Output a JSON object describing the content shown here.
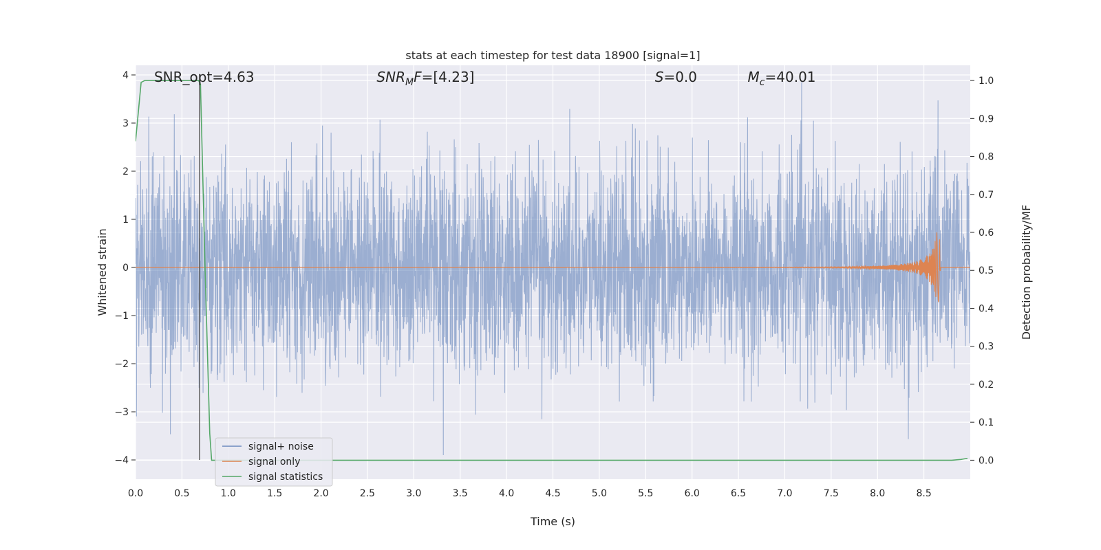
{
  "chart_data": {
    "type": "line",
    "title": "stats at each timestep for test data 18900 [signal=1]",
    "xlabel": "Time (s)",
    "ylabel_left": "Whitened strain",
    "ylabel_right": "Detection probability/MF",
    "xlim": [
      0.0,
      9.0
    ],
    "ylim_left": [
      -4.4,
      4.2
    ],
    "ylim_right": [
      -0.05,
      1.04
    ],
    "x_ticks": [
      "0.0",
      "0.5",
      "1.0",
      "1.5",
      "2.0",
      "2.5",
      "3.0",
      "3.5",
      "4.0",
      "4.5",
      "5.0",
      "5.5",
      "6.0",
      "6.5",
      "7.0",
      "7.5",
      "8.0",
      "8.5"
    ],
    "x_tick_values": [
      0.0,
      0.5,
      1.0,
      1.5,
      2.0,
      2.5,
      3.0,
      3.5,
      4.0,
      4.5,
      5.0,
      5.5,
      6.0,
      6.5,
      7.0,
      7.5,
      8.0,
      8.5
    ],
    "y_ticks_left": [
      "4",
      "3",
      "2",
      "1",
      "0",
      "−1",
      "−2",
      "−3",
      "−4"
    ],
    "y_tick_values_left": [
      4,
      3,
      2,
      1,
      0,
      -1,
      -2,
      -3,
      -4
    ],
    "y_ticks_right": [
      "1.0",
      "0.9",
      "0.8",
      "0.7",
      "0.6",
      "0.5",
      "0.4",
      "0.3",
      "0.2",
      "0.1",
      "0.0"
    ],
    "y_tick_values_right": [
      1.0,
      0.9,
      0.8,
      0.7,
      0.6,
      0.5,
      0.4,
      0.3,
      0.2,
      0.1,
      0.0
    ],
    "grid": true,
    "legend_position": "lower-left",
    "annotations": [
      {
        "text": "SNR_opt=4.63",
        "x": 0.2,
        "y": 4.0
      },
      {
        "text": "SNR",
        "sub": "M",
        "suffix": "F=[4.23]",
        "x": 2.6,
        "y": 4.0,
        "italic": true
      },
      {
        "text": "S",
        "suffix": "=0.0",
        "x": 5.6,
        "y": 4.0,
        "italic": true
      },
      {
        "text": "M",
        "sub": "c",
        "suffix": "=40.01",
        "x": 6.6,
        "y": 4.0,
        "italic": true
      }
    ],
    "vertical_marker_x": 0.69,
    "series": [
      {
        "name": "signal+ noise",
        "color": "#4c72b0",
        "alpha": 0.5,
        "axis": "left",
        "description_values": "white noise, std ~1, range about -4 to 3.9 over 0-9 s"
      },
      {
        "name": "signal only",
        "color": "#dd8452",
        "axis": "left",
        "chirp": {
          "start": 5.5,
          "peak_time": 8.66,
          "peak_amp": 1.15
        }
      },
      {
        "name": "signal statistics",
        "color": "#55a868",
        "axis": "right",
        "x": [
          0.0,
          0.06,
          0.1,
          0.2,
          0.4,
          0.6,
          0.68,
          0.7,
          0.75,
          0.8,
          0.82,
          1.0,
          2.0,
          4.0,
          6.0,
          8.0,
          8.8,
          8.9,
          8.97
        ],
        "y": [
          0.84,
          0.995,
          1.0,
          1.0,
          1.0,
          1.0,
          1.0,
          0.99,
          0.5,
          0.07,
          0.0,
          0.0,
          0.0,
          0.0,
          0.0,
          0.0,
          0.0,
          0.002,
          0.005
        ]
      }
    ]
  }
}
